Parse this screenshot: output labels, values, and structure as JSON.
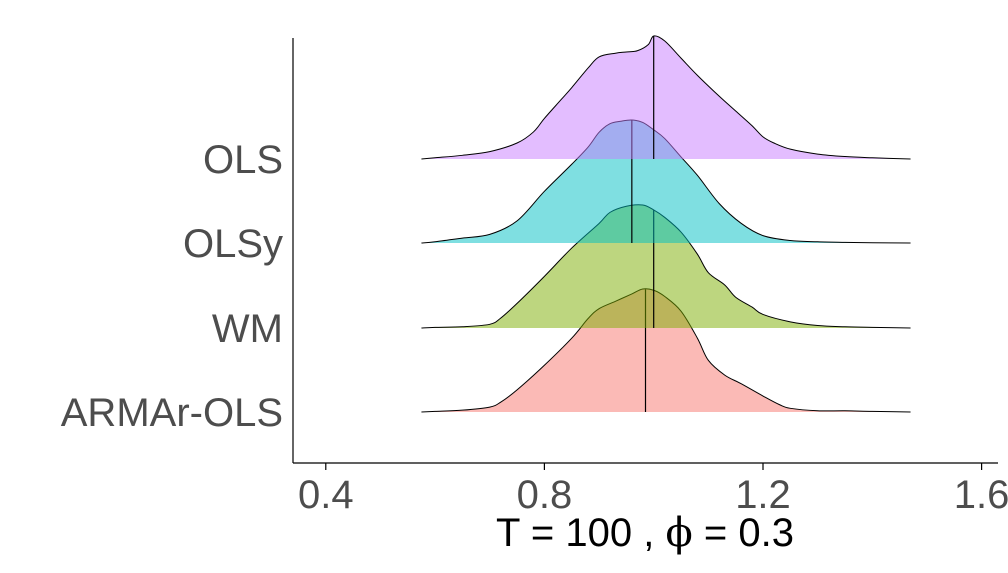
{
  "chart_data": {
    "type": "ridgeline-density",
    "title": "",
    "xlabel": "T = 100 , ϕ = 0.3",
    "xlabel_parts": {
      "n_symbol": "T",
      "n_value": "100",
      "phi_symbol": "ϕ",
      "phi_value": "0.3"
    },
    "ylabel": "",
    "xlim": [
      0.34,
      1.63
    ],
    "x_ticks": [
      0.4,
      0.8,
      1.2,
      1.6
    ],
    "x_tick_labels": [
      "0.4",
      "0.8",
      "1.2",
      "1.6"
    ],
    "grid": false,
    "legend": "none",
    "series": [
      {
        "name": "ARMAr-OLS",
        "color": "#F8766D",
        "median": 0.985,
        "density_x": [
          0.575,
          0.6,
          0.65,
          0.7,
          0.72,
          0.75,
          0.8,
          0.85,
          0.88,
          0.9,
          0.93,
          0.96,
          0.98,
          1.0,
          1.02,
          1.05,
          1.08,
          1.1,
          1.13,
          1.16,
          1.2,
          1.23,
          1.25,
          1.3,
          1.35,
          1.4,
          1.47
        ],
        "density_y": [
          0.0,
          0.005,
          0.015,
          0.04,
          0.08,
          0.18,
          0.38,
          0.6,
          0.76,
          0.84,
          0.9,
          0.96,
          1.0,
          0.99,
          0.94,
          0.82,
          0.6,
          0.42,
          0.3,
          0.23,
          0.13,
          0.06,
          0.03,
          0.01,
          0.01,
          0.005,
          0.0
        ]
      },
      {
        "name": "WM",
        "color": "#7CAE00",
        "median": 1.0,
        "density_x": [
          0.575,
          0.6,
          0.65,
          0.7,
          0.72,
          0.75,
          0.8,
          0.85,
          0.9,
          0.92,
          0.95,
          0.98,
          1.0,
          1.02,
          1.05,
          1.08,
          1.1,
          1.13,
          1.15,
          1.18,
          1.2,
          1.25,
          1.3,
          1.35,
          1.4,
          1.47
        ],
        "density_y": [
          0.0,
          0.005,
          0.01,
          0.03,
          0.08,
          0.2,
          0.42,
          0.65,
          0.85,
          0.94,
          0.99,
          1.0,
          0.96,
          0.9,
          0.78,
          0.6,
          0.45,
          0.35,
          0.25,
          0.17,
          0.11,
          0.05,
          0.02,
          0.01,
          0.005,
          0.0
        ]
      },
      {
        "name": "OLSy",
        "color": "#00BFC4",
        "median": 0.96,
        "density_x": [
          0.575,
          0.6,
          0.65,
          0.7,
          0.75,
          0.8,
          0.85,
          0.88,
          0.9,
          0.92,
          0.94,
          0.96,
          0.98,
          1.0,
          1.02,
          1.05,
          1.08,
          1.12,
          1.16,
          1.2,
          1.25,
          1.3,
          1.35,
          1.4,
          1.47
        ],
        "density_y": [
          0.0,
          0.01,
          0.04,
          0.07,
          0.18,
          0.42,
          0.64,
          0.78,
          0.9,
          0.97,
          0.99,
          1.0,
          0.98,
          0.92,
          0.85,
          0.7,
          0.55,
          0.32,
          0.16,
          0.06,
          0.02,
          0.01,
          0.005,
          0.002,
          0.0
        ]
      },
      {
        "name": "OLS",
        "color": "#C77CFF",
        "median": 1.0,
        "density_x": [
          0.575,
          0.6,
          0.65,
          0.7,
          0.75,
          0.78,
          0.8,
          0.83,
          0.85,
          0.88,
          0.9,
          0.93,
          0.95,
          0.97,
          0.99,
          1.0,
          1.02,
          1.05,
          1.08,
          1.12,
          1.15,
          1.18,
          1.2,
          1.22,
          1.25,
          1.3,
          1.35,
          1.4,
          1.47
        ],
        "density_y": [
          0.0,
          0.01,
          0.03,
          0.06,
          0.13,
          0.22,
          0.33,
          0.48,
          0.58,
          0.74,
          0.83,
          0.86,
          0.87,
          0.88,
          0.93,
          1.0,
          0.96,
          0.82,
          0.68,
          0.51,
          0.39,
          0.27,
          0.18,
          0.13,
          0.08,
          0.04,
          0.02,
          0.01,
          0.0
        ]
      }
    ]
  }
}
